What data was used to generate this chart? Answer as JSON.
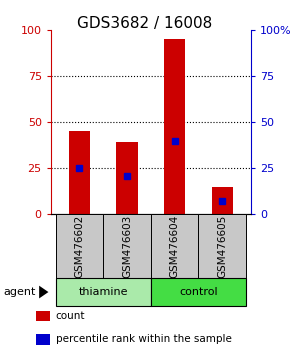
{
  "title": "GDS3682 / 16008",
  "samples": [
    "GSM476602",
    "GSM476603",
    "GSM476604",
    "GSM476605"
  ],
  "count_values": [
    45,
    39,
    95,
    15
  ],
  "percentile_values": [
    25,
    21,
    40,
    7
  ],
  "groups": [
    {
      "label": "thiamine",
      "samples": [
        0,
        1
      ],
      "color": "#aaeaaa"
    },
    {
      "label": "control",
      "samples": [
        2,
        3
      ],
      "color": "#44dd44"
    }
  ],
  "ylim": [
    0,
    100
  ],
  "yticks": [
    0,
    25,
    50,
    75,
    100
  ],
  "grid_lines": [
    25,
    50,
    75
  ],
  "bar_color": "#cc0000",
  "percentile_color": "#0000cc",
  "bar_width": 0.45,
  "title_fontsize": 11,
  "tick_fontsize": 8,
  "sample_fontsize": 7.5,
  "label_fontsize": 8,
  "legend_fontsize": 7.5,
  "left_tick_color": "#cc0000",
  "right_tick_color": "#0000cc",
  "sample_bg": "#c8c8c8",
  "agent_label": "agent",
  "legend_items": [
    {
      "label": "count",
      "color": "#cc0000"
    },
    {
      "label": "percentile rank within the sample",
      "color": "#0000cc"
    }
  ]
}
